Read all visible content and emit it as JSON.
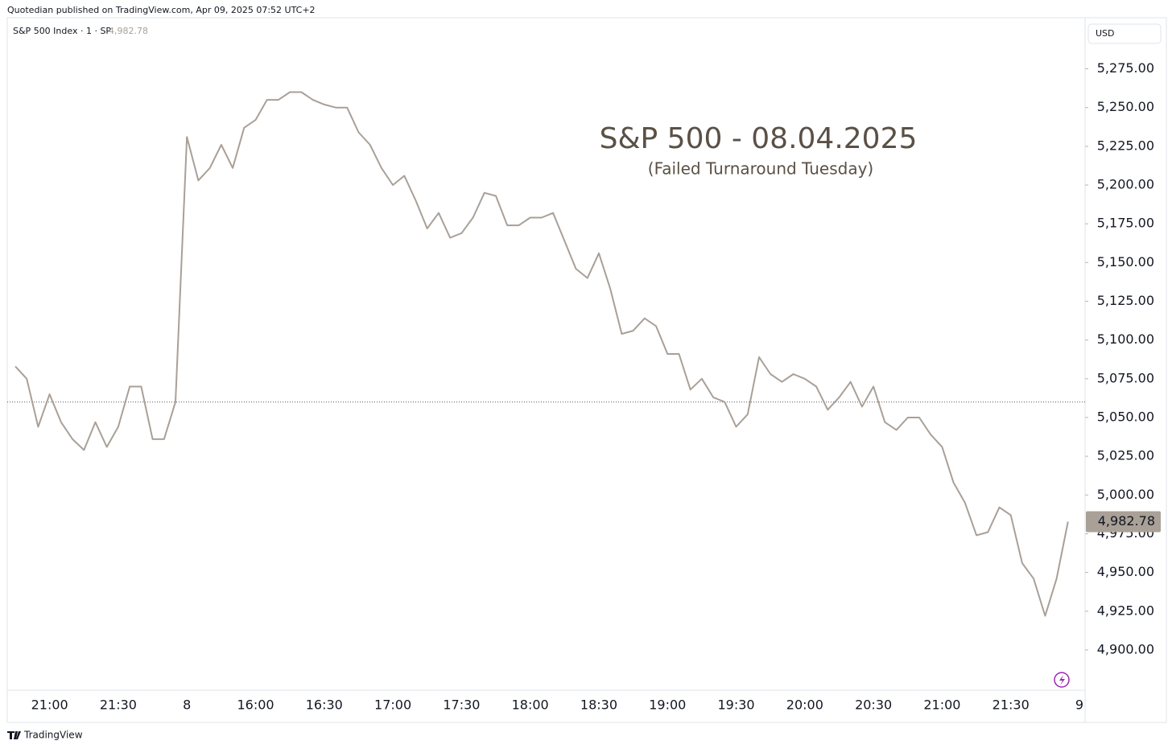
{
  "header": {
    "publisher": "Quotedian published on TradingView.com, Apr 09, 2025 07:52 UTC+2",
    "symbol": "S&P 500 Index · 1 · SP",
    "currency": "USD"
  },
  "footer": {
    "brand": "TradingView"
  },
  "chart_data": {
    "type": "line",
    "title": "S&P 500 - 08.04.2025",
    "subtitle": "(Failed Turnaround Tuesday)",
    "categories": [
      null,
      null,
      null,
      "21:00",
      null,
      null,
      null,
      null,
      null,
      "21:30",
      null,
      null,
      null,
      null,
      null,
      "8",
      null,
      null,
      null,
      null,
      null,
      "16:00",
      null,
      null,
      null,
      null,
      null,
      "16:30",
      null,
      null,
      null,
      null,
      null,
      "17:00",
      null,
      null,
      null,
      null,
      null,
      "17:30",
      null,
      null,
      null,
      null,
      null,
      "18:00",
      null,
      null,
      null,
      null,
      null,
      "18:30",
      null,
      null,
      null,
      null,
      null,
      "19:00",
      null,
      null,
      null,
      null,
      null,
      "19:30",
      null,
      null,
      null,
      null,
      null,
      "20:00",
      null,
      null,
      null,
      null,
      null,
      "20:30",
      null,
      null,
      null,
      null,
      null,
      "21:00",
      null,
      null,
      null,
      null,
      null,
      "21:30",
      null,
      null,
      null,
      null,
      null,
      "9"
    ],
    "series": [
      {
        "name": "S&P 500 Index",
        "color": "#a9a097",
        "last_value_label": "4,982.78",
        "values": [
          5083,
          5075,
          5044,
          5065,
          5047,
          5036,
          5029,
          5047,
          5031,
          5044,
          5070,
          5070,
          5036,
          5036,
          5060,
          5231,
          5203,
          5211,
          5226,
          5211,
          5237,
          5242,
          5255,
          5255,
          5260,
          5260,
          5255,
          5252,
          5250,
          5250,
          5234,
          5226,
          5211,
          5200,
          5206,
          5190,
          5172,
          5182,
          5166,
          5169,
          5179,
          5195,
          5193,
          5174,
          5174,
          5179,
          5179,
          5182,
          5164,
          5146,
          5140,
          5156,
          5133,
          5104,
          5106,
          5114,
          5109,
          5091,
          5091,
          5068,
          5075,
          5063,
          5060,
          5044,
          5052,
          5089,
          5078,
          5073,
          5078,
          5075,
          5070,
          5055,
          5063,
          5073,
          5057,
          5070,
          5047,
          5042,
          5050,
          5050,
          5039,
          5031,
          5008,
          4995,
          4974,
          4976,
          4992,
          4987,
          4956,
          4946,
          4922,
          4946,
          4982.78,
          null
        ]
      }
    ],
    "ylim": [
      4874,
      5308
    ],
    "yticks": [
      {
        "value": 4900,
        "label": "4,900.00"
      },
      {
        "value": 4925,
        "label": "4,925.00"
      },
      {
        "value": 4950,
        "label": "4,950.00"
      },
      {
        "value": 4975,
        "label": "4,975.00"
      },
      {
        "value": 5000,
        "label": "5,000.00"
      },
      {
        "value": 5025,
        "label": "5,025.00"
      },
      {
        "value": 5050,
        "label": "5,050.00"
      },
      {
        "value": 5075,
        "label": "5,075.00"
      },
      {
        "value": 5100,
        "label": "5,100.00"
      },
      {
        "value": 5125,
        "label": "5,125.00"
      },
      {
        "value": 5150,
        "label": "5,150.00"
      },
      {
        "value": 5175,
        "label": "5,175.00"
      },
      {
        "value": 5200,
        "label": "5,200.00"
      },
      {
        "value": 5225,
        "label": "5,225.00"
      },
      {
        "value": 5250,
        "label": "5,250.00"
      },
      {
        "value": 5275,
        "label": "5,275.00"
      }
    ],
    "grid": false
  }
}
